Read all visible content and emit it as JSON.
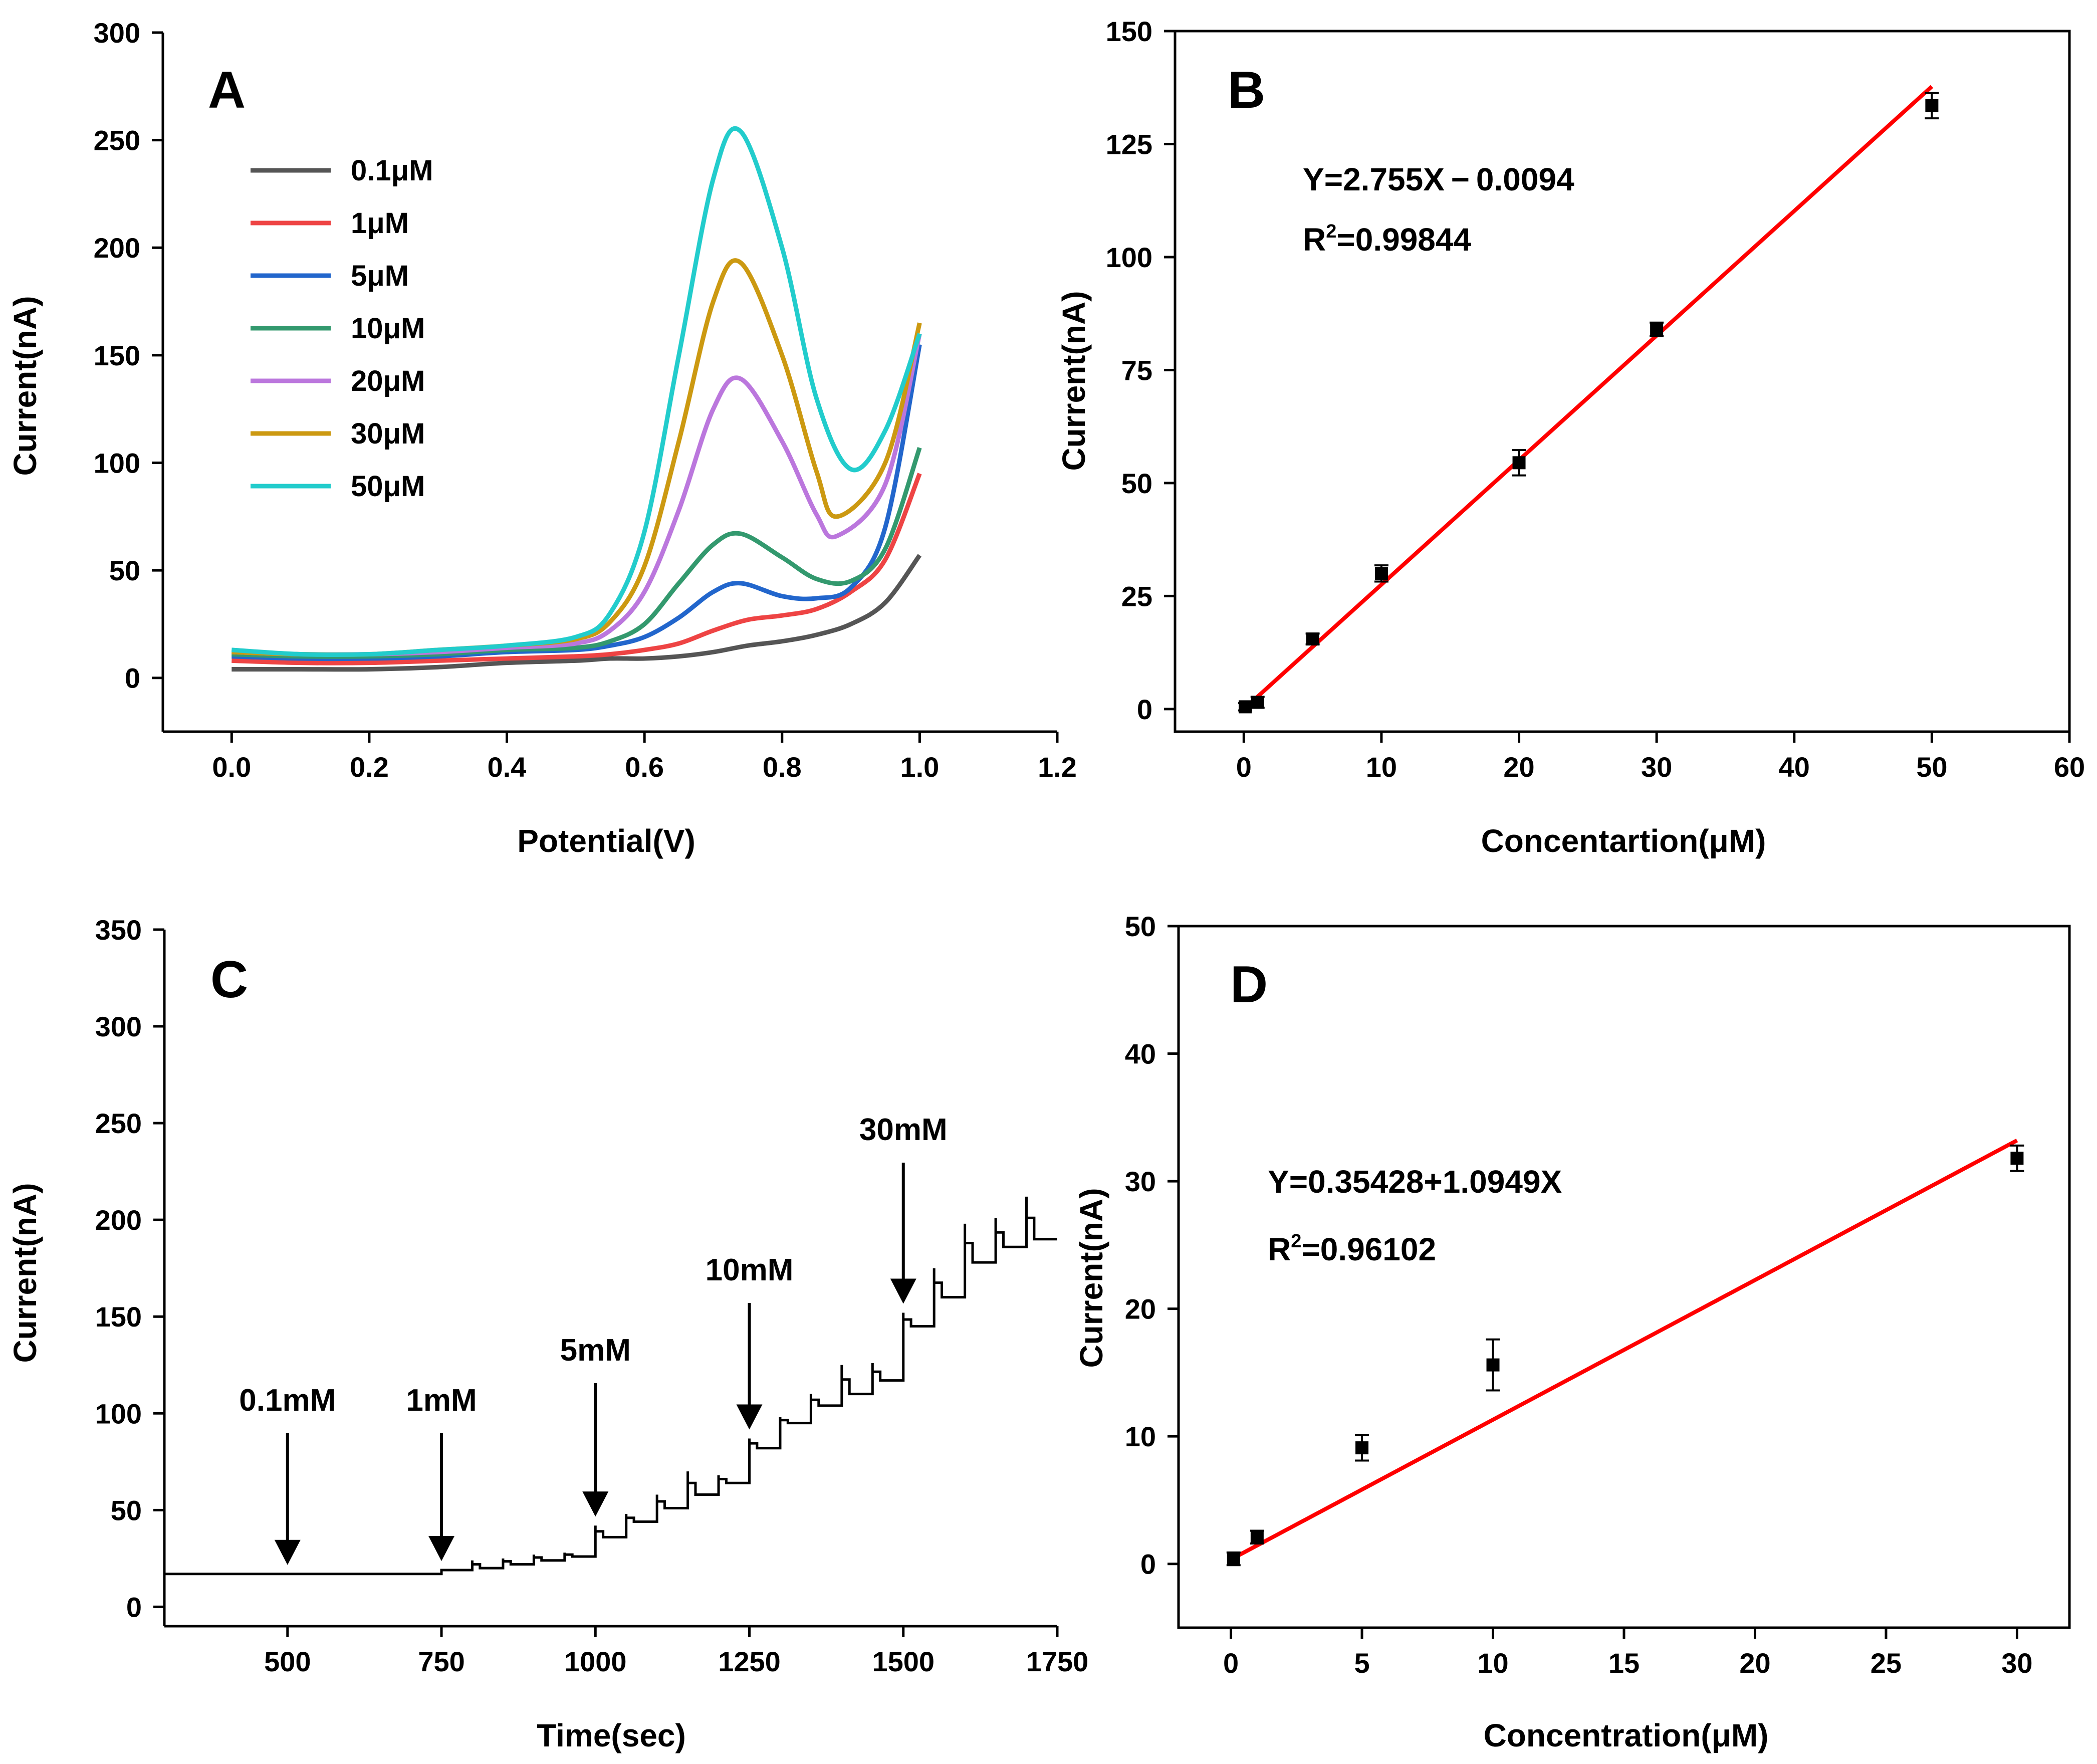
{
  "chart_data": [
    {
      "panel": "A",
      "type": "line",
      "xlabel": "Potential(V)",
      "ylabel": "Current(nA)",
      "xlim": [
        -0.1,
        1.2
      ],
      "ylim": [
        -25,
        300
      ],
      "xticks": [
        0.0,
        0.2,
        0.4,
        0.6,
        0.8,
        1.0,
        1.2
      ],
      "xtick_labels": [
        "0.0",
        "0.2",
        "0.4",
        "0.6",
        "0.8",
        "1.0",
        "1.2"
      ],
      "yticks": [
        0,
        50,
        100,
        150,
        200,
        250,
        300
      ],
      "ytick_labels": [
        "0",
        "50",
        "100",
        "150",
        "200",
        "250",
        "300"
      ],
      "legend_position": "top-left",
      "series": [
        {
          "name": "0.1μM",
          "color": "#555555",
          "x": [
            0.0,
            0.1,
            0.2,
            0.3,
            0.4,
            0.5,
            0.55,
            0.6,
            0.65,
            0.7,
            0.75,
            0.8,
            0.85,
            0.9,
            0.95,
            1.0
          ],
          "y": [
            4,
            4,
            4,
            5,
            7,
            8,
            9,
            9,
            10,
            12,
            15,
            17,
            20,
            25,
            35,
            57
          ]
        },
        {
          "name": "1μM",
          "color": "#ee4444",
          "x": [
            0.0,
            0.1,
            0.2,
            0.3,
            0.4,
            0.5,
            0.55,
            0.6,
            0.65,
            0.7,
            0.75,
            0.8,
            0.85,
            0.9,
            0.95,
            1.0
          ],
          "y": [
            8,
            7,
            7,
            8,
            9,
            10,
            11,
            13,
            16,
            22,
            27,
            29,
            32,
            40,
            55,
            95
          ]
        },
        {
          "name": "5μM",
          "color": "#2266cc",
          "x": [
            0.0,
            0.1,
            0.2,
            0.3,
            0.4,
            0.5,
            0.55,
            0.6,
            0.65,
            0.7,
            0.74,
            0.8,
            0.85,
            0.9,
            0.95,
            1.0
          ],
          "y": [
            10,
            9,
            9,
            10,
            12,
            13,
            15,
            19,
            28,
            40,
            44,
            38,
            37,
            42,
            70,
            155
          ]
        },
        {
          "name": "10μM",
          "color": "#33996e",
          "x": [
            0.0,
            0.1,
            0.2,
            0.3,
            0.4,
            0.5,
            0.55,
            0.6,
            0.65,
            0.7,
            0.74,
            0.8,
            0.85,
            0.9,
            0.95,
            1.0
          ],
          "y": [
            11,
            10,
            10,
            11,
            13,
            14,
            17,
            25,
            44,
            62,
            67,
            56,
            46,
            45,
            60,
            107
          ]
        },
        {
          "name": "20μM",
          "color": "#bb77dd",
          "x": [
            0.0,
            0.1,
            0.2,
            0.3,
            0.4,
            0.5,
            0.55,
            0.6,
            0.65,
            0.7,
            0.74,
            0.8,
            0.85,
            0.88,
            0.95,
            1.0
          ],
          "y": [
            12,
            11,
            11,
            12,
            14,
            16,
            22,
            40,
            78,
            125,
            139,
            110,
            76,
            66,
            90,
            160
          ]
        },
        {
          "name": "30μM",
          "color": "#cc9911",
          "x": [
            0.0,
            0.1,
            0.2,
            0.3,
            0.4,
            0.5,
            0.55,
            0.6,
            0.65,
            0.7,
            0.74,
            0.8,
            0.85,
            0.88,
            0.95,
            1.0
          ],
          "y": [
            12,
            11,
            11,
            13,
            15,
            18,
            26,
            52,
            110,
            175,
            193,
            150,
            96,
            75,
            100,
            165
          ]
        },
        {
          "name": "50μM",
          "color": "#22cccc",
          "x": [
            0.0,
            0.1,
            0.2,
            0.3,
            0.4,
            0.5,
            0.55,
            0.6,
            0.65,
            0.7,
            0.74,
            0.8,
            0.85,
            0.9,
            0.95,
            1.0
          ],
          "y": [
            13,
            11,
            11,
            13,
            15,
            19,
            30,
            68,
            150,
            232,
            254,
            200,
            130,
            97,
            115,
            160
          ]
        }
      ]
    },
    {
      "panel": "B",
      "type": "scatter",
      "xlabel": "Concentartion(μM)",
      "ylabel": "Current(nA)",
      "xlim": [
        -5,
        60
      ],
      "ylim": [
        -5,
        150
      ],
      "xticks": [
        0,
        10,
        20,
        30,
        40,
        50,
        60
      ],
      "xtick_labels": [
        "0",
        "10",
        "20",
        "30",
        "40",
        "50",
        "60"
      ],
      "yticks": [
        0,
        25,
        50,
        75,
        100,
        125,
        150
      ],
      "ytick_labels": [
        "0",
        "25",
        "50",
        "75",
        "100",
        "125",
        "150"
      ],
      "series": [
        {
          "name": "data",
          "x": [
            0.1,
            1,
            5,
            10,
            20,
            30,
            50
          ],
          "y": [
            0.5,
            1.5,
            15.5,
            30,
            54.5,
            84,
            133.5
          ],
          "err": [
            0.8,
            1.2,
            1.2,
            1.8,
            2.8,
            1.5,
            2.8
          ]
        }
      ],
      "fit": {
        "slope": 2.755,
        "intercept": -0.0094,
        "x_range": [
          0,
          50
        ],
        "color": "#ff0000"
      },
      "equation": "Y=2.755X − 0.0094",
      "r2_prefix": "R",
      "r2_sup": "2",
      "r2_value": "=0.99844"
    },
    {
      "panel": "C",
      "type": "line",
      "xlabel": "Time(sec)",
      "ylabel": "Current(nA)",
      "xlim": [
        300,
        1750
      ],
      "ylim": [
        -10,
        350
      ],
      "xticks": [
        500,
        750,
        1000,
        1250,
        1500,
        1750
      ],
      "xtick_labels": [
        "500",
        "750",
        "1000",
        "1250",
        "1500",
        "1750"
      ],
      "yticks": [
        0,
        50,
        100,
        150,
        200,
        250,
        300,
        350
      ],
      "ytick_labels": [
        "0",
        "50",
        "100",
        "150",
        "200",
        "250",
        "300",
        "350"
      ],
      "steps": [
        {
          "t": 750,
          "base": 19,
          "spike": 19
        },
        {
          "t": 800,
          "base": 20,
          "spike": 24
        },
        {
          "t": 850,
          "base": 22,
          "spike": 25
        },
        {
          "t": 900,
          "base": 24,
          "spike": 27
        },
        {
          "t": 950,
          "base": 26,
          "spike": 28
        },
        {
          "t": 1000,
          "base": 36,
          "spike": 42
        },
        {
          "t": 1050,
          "base": 44,
          "spike": 48
        },
        {
          "t": 1100,
          "base": 51,
          "spike": 58
        },
        {
          "t": 1150,
          "base": 58,
          "spike": 70
        },
        {
          "t": 1200,
          "base": 64,
          "spike": 68
        },
        {
          "t": 1250,
          "base": 82,
          "spike": 87
        },
        {
          "t": 1300,
          "base": 95,
          "spike": 98
        },
        {
          "t": 1350,
          "base": 104,
          "spike": 110
        },
        {
          "t": 1400,
          "base": 110,
          "spike": 125
        },
        {
          "t": 1450,
          "base": 117,
          "spike": 126
        },
        {
          "t": 1500,
          "base": 145,
          "spike": 152
        },
        {
          "t": 1550,
          "base": 160,
          "spike": 175
        },
        {
          "t": 1600,
          "base": 178,
          "spike": 198
        },
        {
          "t": 1650,
          "base": 186,
          "spike": 201
        },
        {
          "t": 1700,
          "base": 190,
          "spike": 212
        }
      ],
      "baseline": 17,
      "end_time": 1750,
      "annotations": [
        {
          "label": "0.1mM",
          "t": 500
        },
        {
          "label": "1mM",
          "t": 750
        },
        {
          "label": "5mM",
          "t": 1000
        },
        {
          "label": "10mM",
          "t": 1250
        },
        {
          "label": "30mM",
          "t": 1500
        }
      ]
    },
    {
      "panel": "D",
      "type": "scatter",
      "xlabel": "Concentration(μM)",
      "ylabel": "Current(nA)",
      "xlim": [
        -2,
        32
      ],
      "ylim": [
        -5,
        50
      ],
      "xticks": [
        0,
        5,
        10,
        15,
        20,
        25,
        30
      ],
      "xtick_labels": [
        "0",
        "5",
        "10",
        "15",
        "20",
        "25",
        "30"
      ],
      "yticks": [
        0,
        10,
        20,
        30,
        40,
        50
      ],
      "ytick_labels": [
        "0",
        "10",
        "20",
        "30",
        "40",
        "50"
      ],
      "series": [
        {
          "name": "data",
          "x": [
            0.1,
            1,
            5,
            10,
            30
          ],
          "y": [
            0.4,
            2.1,
            9.1,
            15.6,
            31.8
          ],
          "err": [
            0.5,
            0.5,
            1.0,
            2.0,
            1.0
          ]
        }
      ],
      "fit": {
        "slope": 1.0949,
        "intercept": 0.35428,
        "x_range": [
          0,
          30
        ],
        "color": "#ff0000"
      },
      "equation": "Y=0.35428+1.0949X",
      "r2_prefix": "R",
      "r2_sup": "2",
      "r2_value": "=0.96102"
    }
  ],
  "panel_labels": [
    "A",
    "B",
    "C",
    "D"
  ]
}
